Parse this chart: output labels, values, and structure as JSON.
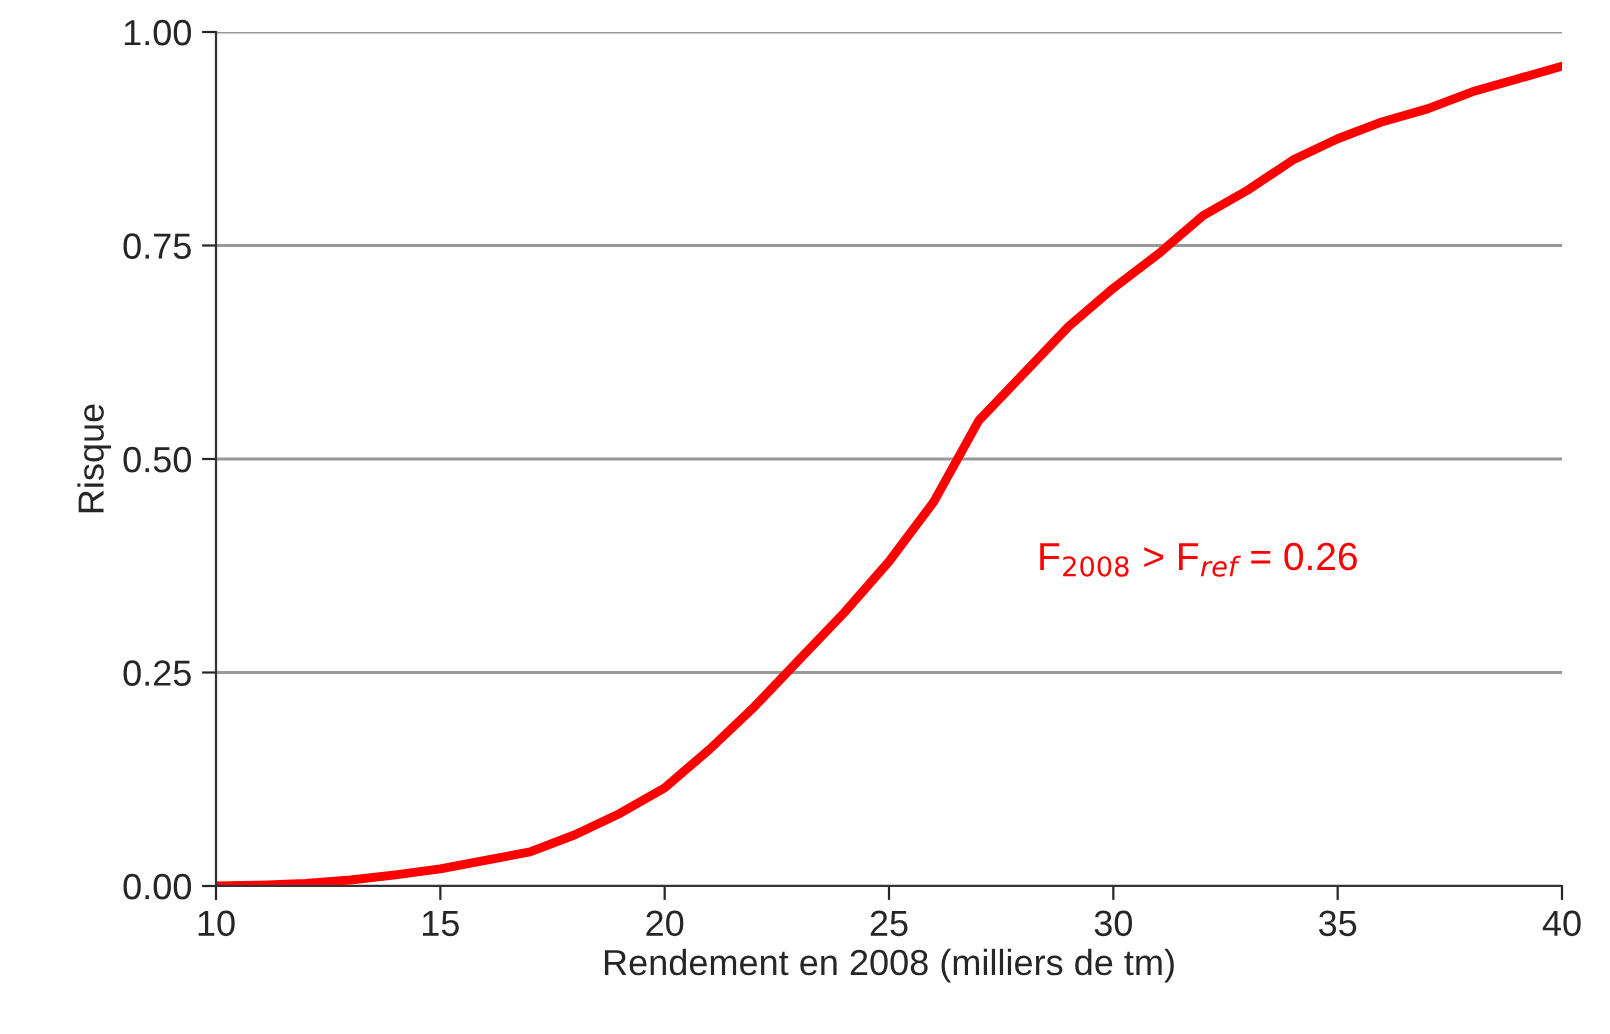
{
  "chart_data": {
    "type": "line",
    "xlabel": "Rendement en 2008 (milliers de tm)",
    "ylabel": "Risque",
    "x": [
      10,
      11,
      12,
      13,
      14,
      15,
      16,
      17,
      18,
      19,
      20,
      21,
      22,
      23,
      24,
      25,
      26,
      27,
      28,
      29,
      30,
      31,
      32,
      33,
      34,
      35,
      36,
      37,
      38,
      39,
      40
    ],
    "series": [
      {
        "color": "#ff0000",
        "values": [
          0,
          0.001,
          0.003,
          0.007,
          0.013,
          0.02,
          0.03,
          0.04,
          0.06,
          0.085,
          0.115,
          0.16,
          0.21,
          0.265,
          0.32,
          0.38,
          0.45,
          0.545,
          0.6,
          0.655,
          0.7,
          0.74,
          0.785,
          0.815,
          0.85,
          0.875,
          0.895,
          0.91,
          0.93,
          0.945,
          0.96
        ]
      }
    ],
    "annotations": [
      "F$_{2008}$ > F$_{ref}$ = 0.26"
    ],
    "xlim": [
      10,
      40
    ],
    "xticks": [
      10,
      15,
      20,
      25,
      30,
      35,
      40
    ],
    "ylim": [
      0,
      1
    ],
    "yticks": [
      {
        "value": 0,
        "label": "0.00"
      },
      {
        "value": 0.25,
        "label": "0.25"
      },
      {
        "value": 0.5,
        "label": "0.50"
      },
      {
        "value": 0.75,
        "label": "0.75"
      },
      {
        "value": 1,
        "label": "1.00"
      }
    ],
    "grid": "y",
    "marker": "none",
    "line_style": "solid"
  }
}
